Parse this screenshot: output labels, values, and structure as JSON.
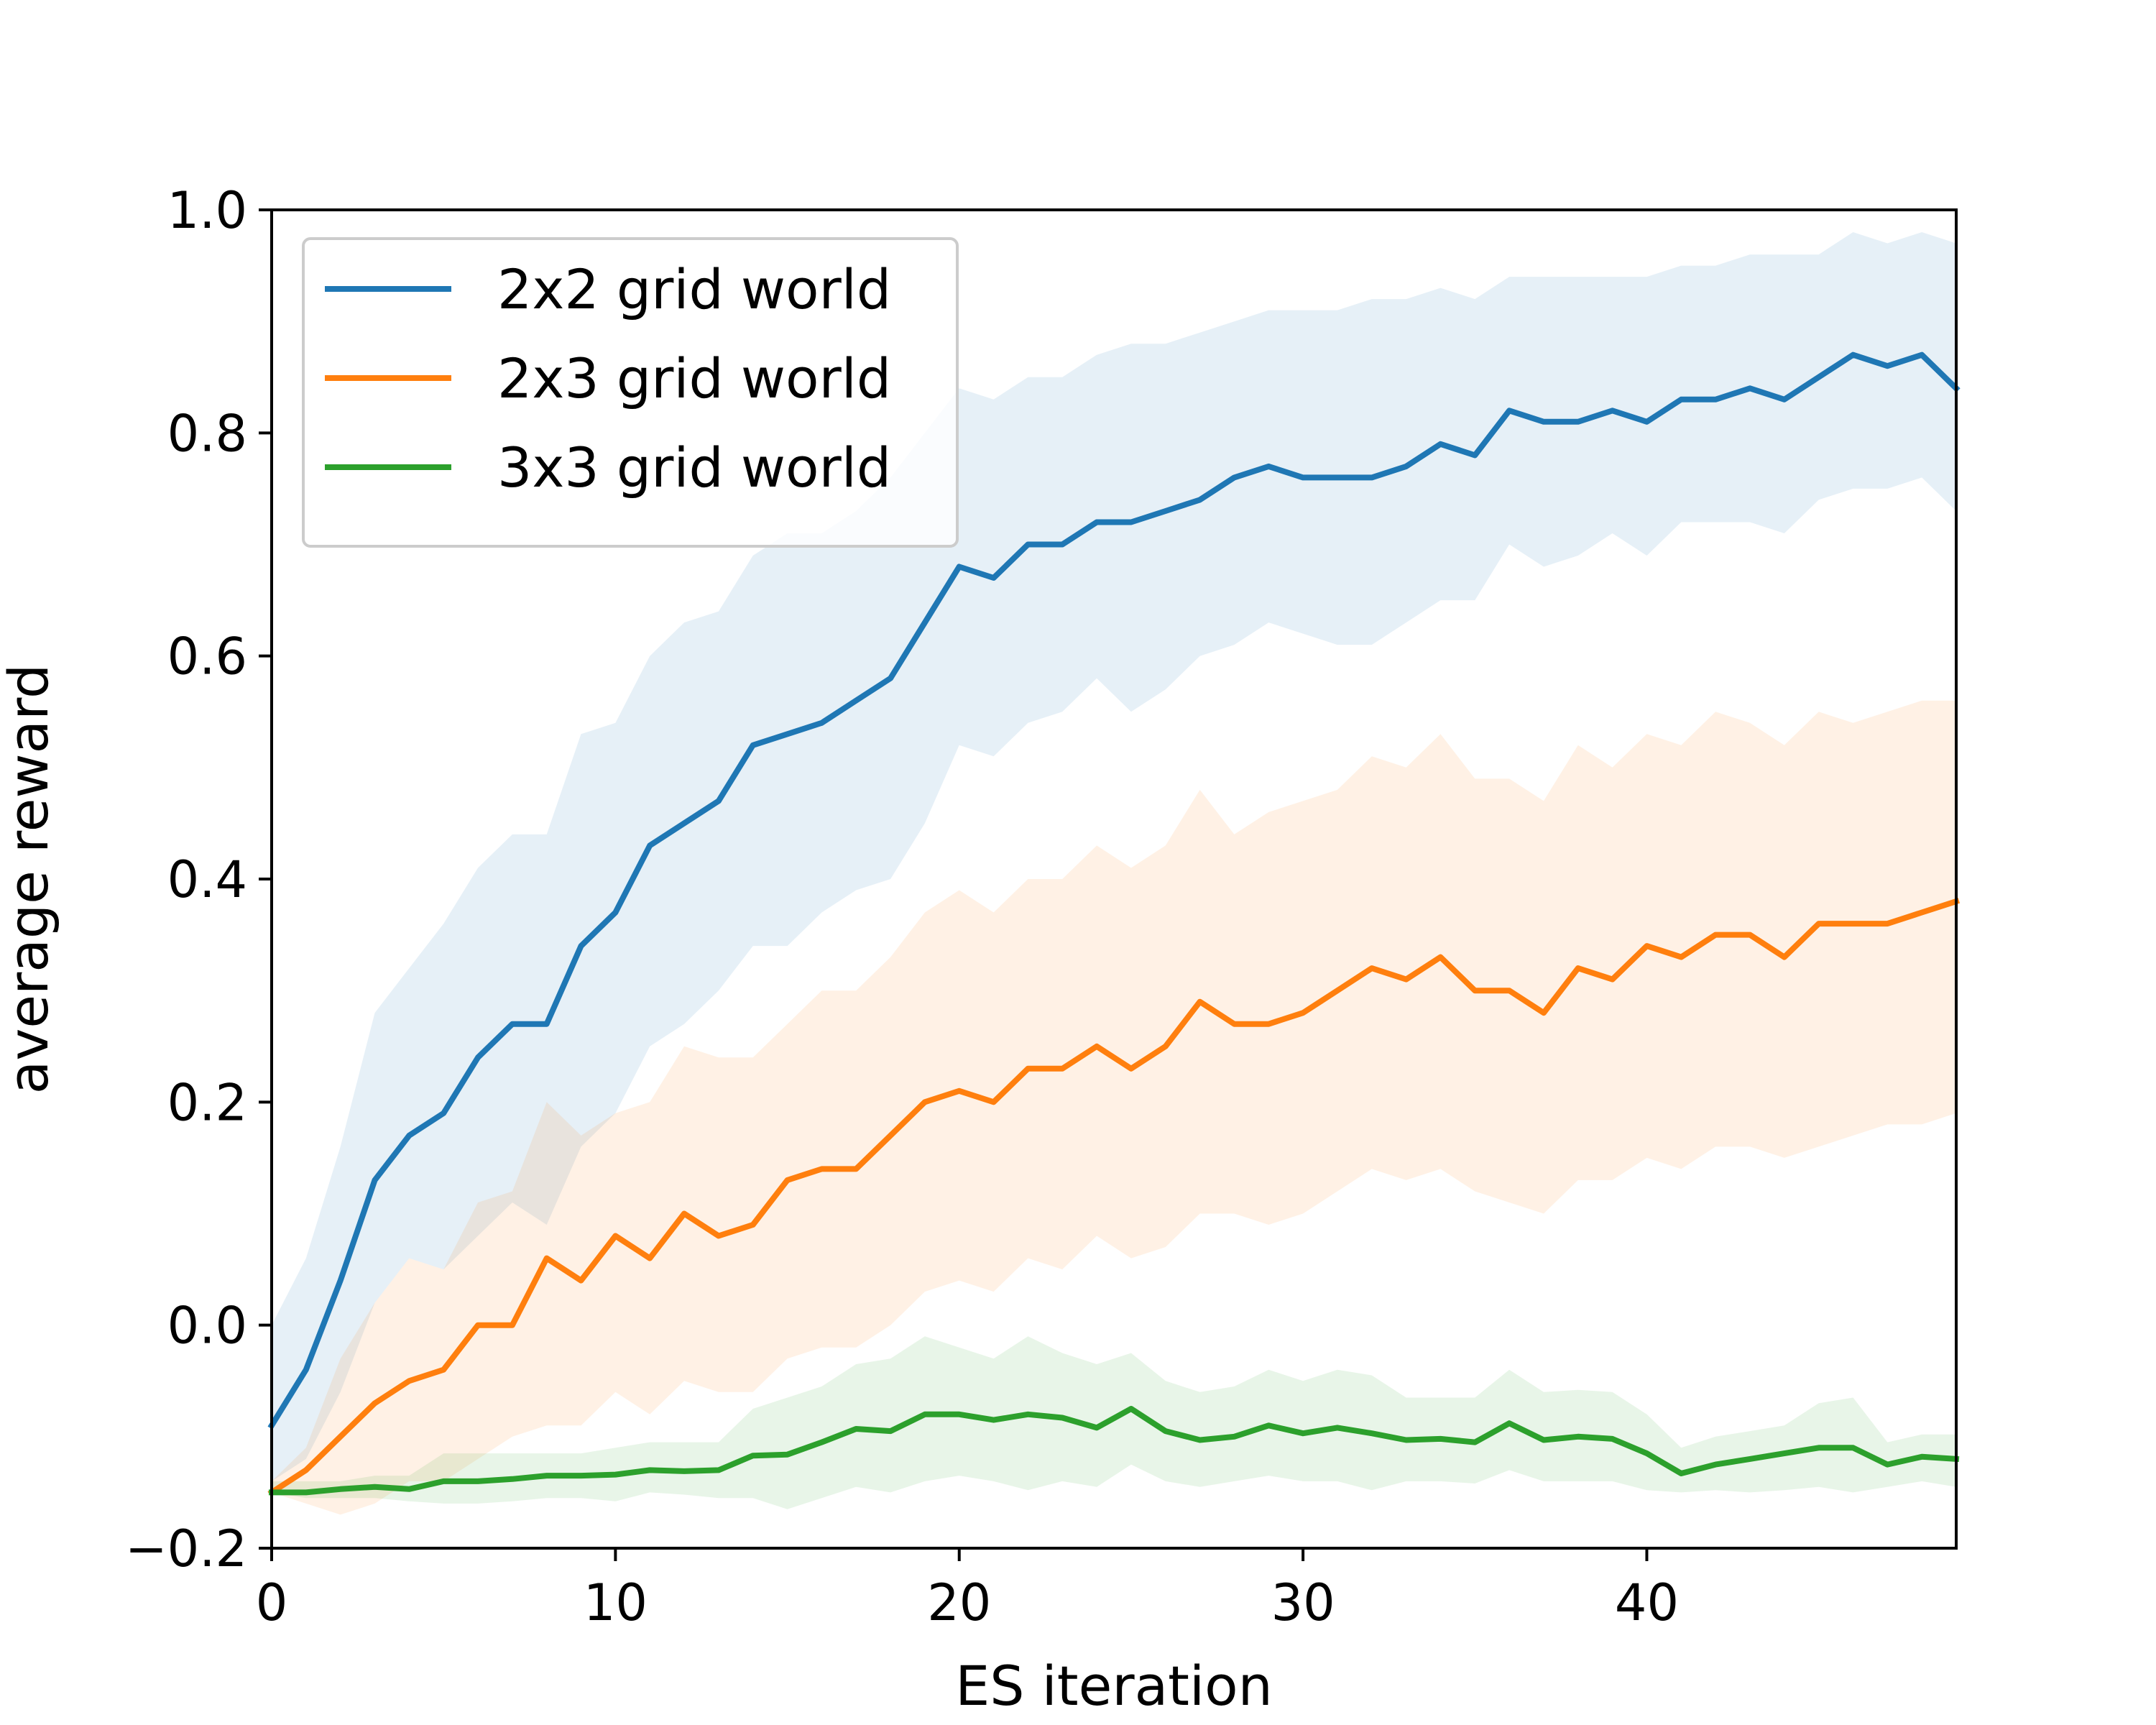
{
  "chart_data": {
    "type": "line",
    "xlabel": "ES iteration",
    "ylabel": "average reward",
    "xlim": [
      0,
      49
    ],
    "ylim": [
      -0.2,
      1.0
    ],
    "xticks": [
      0,
      10,
      20,
      30,
      40
    ],
    "xtick_labels": [
      "0",
      "10",
      "20",
      "30",
      "40"
    ],
    "yticks": [
      -0.2,
      0.0,
      0.2,
      0.4,
      0.6,
      0.8,
      1.0
    ],
    "ytick_labels": [
      "−0.2",
      "0.0",
      "0.2",
      "0.4",
      "0.6",
      "0.8",
      "1.0"
    ],
    "grid": false,
    "legend_position": "upper-left",
    "series": [
      {
        "name": "2x2 grid world",
        "color": "#1f77b4",
        "x": [
          0,
          1,
          2,
          3,
          4,
          5,
          6,
          7,
          8,
          9,
          10,
          11,
          12,
          13,
          14,
          15,
          16,
          17,
          18,
          19,
          20,
          21,
          22,
          23,
          24,
          25,
          26,
          27,
          28,
          29,
          30,
          31,
          32,
          33,
          34,
          35,
          36,
          37,
          38,
          39,
          40,
          41,
          42,
          43,
          44,
          45,
          46,
          47,
          48,
          49
        ],
        "mean": [
          -0.09,
          -0.04,
          0.04,
          0.13,
          0.17,
          0.19,
          0.24,
          0.27,
          0.27,
          0.34,
          0.37,
          0.43,
          0.45,
          0.47,
          0.52,
          0.53,
          0.54,
          0.56,
          0.58,
          0.63,
          0.68,
          0.67,
          0.7,
          0.7,
          0.72,
          0.72,
          0.73,
          0.74,
          0.76,
          0.77,
          0.76,
          0.76,
          0.76,
          0.77,
          0.79,
          0.78,
          0.82,
          0.81,
          0.81,
          0.82,
          0.81,
          0.83,
          0.83,
          0.84,
          0.83,
          0.85,
          0.87,
          0.86,
          0.87,
          0.84
        ],
        "lower": [
          -0.14,
          -0.12,
          -0.06,
          0.02,
          0.06,
          0.05,
          0.08,
          0.11,
          0.09,
          0.16,
          0.19,
          0.25,
          0.27,
          0.3,
          0.34,
          0.34,
          0.37,
          0.39,
          0.4,
          0.45,
          0.52,
          0.51,
          0.54,
          0.55,
          0.58,
          0.55,
          0.57,
          0.6,
          0.61,
          0.63,
          0.62,
          0.61,
          0.61,
          0.63,
          0.65,
          0.65,
          0.7,
          0.68,
          0.69,
          0.71,
          0.69,
          0.72,
          0.72,
          0.72,
          0.71,
          0.74,
          0.75,
          0.75,
          0.76,
          0.73
        ],
        "upper": [
          0.0,
          0.06,
          0.16,
          0.28,
          0.32,
          0.36,
          0.41,
          0.44,
          0.44,
          0.53,
          0.54,
          0.6,
          0.63,
          0.64,
          0.69,
          0.71,
          0.71,
          0.73,
          0.76,
          0.8,
          0.84,
          0.83,
          0.85,
          0.85,
          0.87,
          0.88,
          0.88,
          0.89,
          0.9,
          0.91,
          0.91,
          0.91,
          0.92,
          0.92,
          0.93,
          0.92,
          0.94,
          0.94,
          0.94,
          0.94,
          0.94,
          0.95,
          0.95,
          0.96,
          0.96,
          0.96,
          0.98,
          0.97,
          0.98,
          0.97
        ]
      },
      {
        "name": "2x3 grid world",
        "color": "#ff7f0e",
        "x": [
          0,
          1,
          2,
          3,
          4,
          5,
          6,
          7,
          8,
          9,
          10,
          11,
          12,
          13,
          14,
          15,
          16,
          17,
          18,
          19,
          20,
          21,
          22,
          23,
          24,
          25,
          26,
          27,
          28,
          29,
          30,
          31,
          32,
          33,
          34,
          35,
          36,
          37,
          38,
          39,
          40,
          41,
          42,
          43,
          44,
          45,
          46,
          47,
          48,
          49
        ],
        "mean": [
          -0.15,
          -0.13,
          -0.1,
          -0.07,
          -0.05,
          -0.04,
          0.0,
          0.0,
          0.06,
          0.04,
          0.08,
          0.06,
          0.1,
          0.08,
          0.09,
          0.13,
          0.14,
          0.14,
          0.17,
          0.2,
          0.21,
          0.2,
          0.23,
          0.23,
          0.25,
          0.23,
          0.25,
          0.29,
          0.27,
          0.27,
          0.28,
          0.3,
          0.32,
          0.31,
          0.33,
          0.3,
          0.3,
          0.28,
          0.32,
          0.31,
          0.34,
          0.33,
          0.35,
          0.35,
          0.33,
          0.36,
          0.36,
          0.36,
          0.37,
          0.38
        ],
        "lower": [
          -0.15,
          -0.16,
          -0.17,
          -0.16,
          -0.14,
          -0.14,
          -0.12,
          -0.1,
          -0.09,
          -0.09,
          -0.06,
          -0.08,
          -0.05,
          -0.06,
          -0.06,
          -0.03,
          -0.02,
          -0.02,
          0.0,
          0.03,
          0.04,
          0.03,
          0.06,
          0.05,
          0.08,
          0.06,
          0.07,
          0.1,
          0.1,
          0.09,
          0.1,
          0.12,
          0.14,
          0.13,
          0.14,
          0.12,
          0.11,
          0.1,
          0.13,
          0.13,
          0.15,
          0.14,
          0.16,
          0.16,
          0.15,
          0.16,
          0.17,
          0.18,
          0.18,
          0.19
        ],
        "upper": [
          -0.14,
          -0.11,
          -0.03,
          0.02,
          0.06,
          0.05,
          0.11,
          0.12,
          0.2,
          0.17,
          0.19,
          0.2,
          0.25,
          0.24,
          0.24,
          0.27,
          0.3,
          0.3,
          0.33,
          0.37,
          0.39,
          0.37,
          0.4,
          0.4,
          0.43,
          0.41,
          0.43,
          0.48,
          0.44,
          0.46,
          0.47,
          0.48,
          0.51,
          0.5,
          0.53,
          0.49,
          0.49,
          0.47,
          0.52,
          0.5,
          0.53,
          0.52,
          0.55,
          0.54,
          0.52,
          0.55,
          0.54,
          0.55,
          0.56,
          0.56
        ]
      },
      {
        "name": "3x3 grid world",
        "color": "#2ca02c",
        "x": [
          0,
          1,
          2,
          3,
          4,
          5,
          6,
          7,
          8,
          9,
          10,
          11,
          12,
          13,
          14,
          15,
          16,
          17,
          18,
          19,
          20,
          21,
          22,
          23,
          24,
          25,
          26,
          27,
          28,
          29,
          30,
          31,
          32,
          33,
          34,
          35,
          36,
          37,
          38,
          39,
          40,
          41,
          42,
          43,
          44,
          45,
          46,
          47,
          48,
          49
        ],
        "mean": [
          -0.15,
          -0.15,
          -0.147,
          -0.145,
          -0.147,
          -0.14,
          -0.14,
          -0.138,
          -0.135,
          -0.135,
          -0.134,
          -0.13,
          -0.131,
          -0.13,
          -0.117,
          -0.116,
          -0.105,
          -0.093,
          -0.095,
          -0.08,
          -0.08,
          -0.085,
          -0.08,
          -0.083,
          -0.092,
          -0.075,
          -0.095,
          -0.103,
          -0.1,
          -0.09,
          -0.097,
          -0.092,
          -0.097,
          -0.103,
          -0.102,
          -0.105,
          -0.088,
          -0.103,
          -0.1,
          -0.102,
          -0.115,
          -0.133,
          -0.125,
          -0.12,
          -0.115,
          -0.11,
          -0.11,
          -0.125,
          -0.118,
          -0.12
        ],
        "lower": [
          -0.15,
          -0.155,
          -0.155,
          -0.155,
          -0.158,
          -0.16,
          -0.16,
          -0.158,
          -0.155,
          -0.155,
          -0.158,
          -0.15,
          -0.152,
          -0.155,
          -0.155,
          -0.165,
          -0.155,
          -0.145,
          -0.15,
          -0.14,
          -0.135,
          -0.14,
          -0.148,
          -0.14,
          -0.145,
          -0.125,
          -0.14,
          -0.145,
          -0.14,
          -0.135,
          -0.14,
          -0.14,
          -0.148,
          -0.14,
          -0.14,
          -0.142,
          -0.13,
          -0.14,
          -0.14,
          -0.14,
          -0.148,
          -0.15,
          -0.148,
          -0.15,
          -0.148,
          -0.145,
          -0.15,
          -0.145,
          -0.14,
          -0.145
        ],
        "upper": [
          -0.14,
          -0.14,
          -0.14,
          -0.135,
          -0.135,
          -0.115,
          -0.115,
          -0.115,
          -0.115,
          -0.115,
          -0.11,
          -0.105,
          -0.105,
          -0.105,
          -0.075,
          -0.065,
          -0.055,
          -0.035,
          -0.03,
          -0.01,
          -0.02,
          -0.03,
          -0.01,
          -0.025,
          -0.035,
          -0.025,
          -0.05,
          -0.06,
          -0.055,
          -0.04,
          -0.05,
          -0.04,
          -0.045,
          -0.065,
          -0.065,
          -0.065,
          -0.04,
          -0.06,
          -0.058,
          -0.06,
          -0.08,
          -0.11,
          -0.1,
          -0.095,
          -0.09,
          -0.07,
          -0.065,
          -0.105,
          -0.098,
          -0.098
        ]
      }
    ]
  }
}
